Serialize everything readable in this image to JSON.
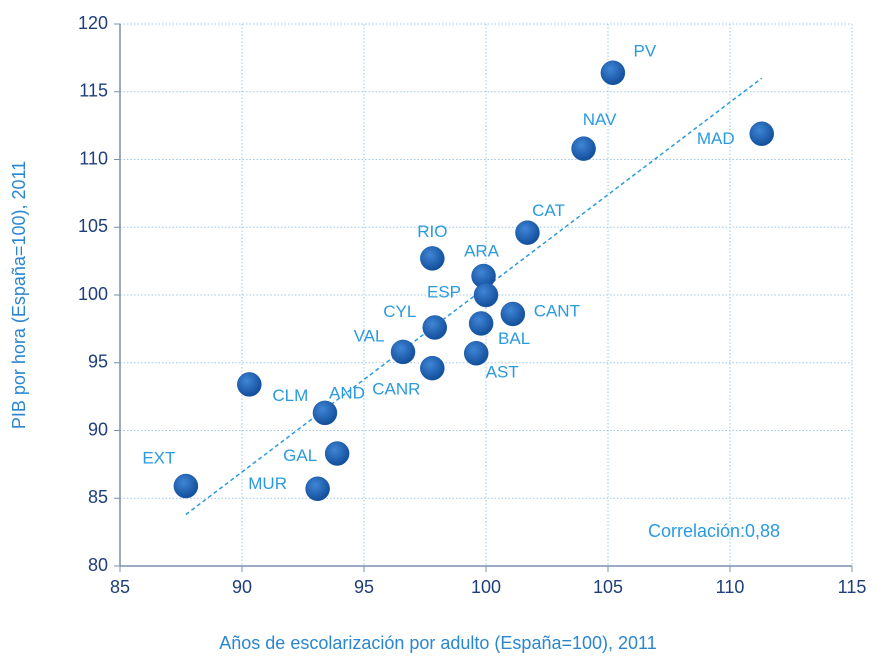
{
  "chart_data": {
    "type": "scatter",
    "x_label": "Años de escolarización por adulto (España=100), 2011",
    "y_label": "PIB por hora (España=100), 2011",
    "annotation": "Correlación:0,88",
    "labels": [
      "PV",
      "NAV",
      "MAD",
      "CAT",
      "RIO",
      "ARA",
      "ESP",
      "CYL",
      "CANT",
      "BAL",
      "VAL",
      "AST",
      "CANR",
      "CLM",
      "AND",
      "GAL",
      "EXT",
      "MUR"
    ],
    "x": [
      105.2,
      104.0,
      111.3,
      101.7,
      97.8,
      99.9,
      100.0,
      97.9,
      101.1,
      99.8,
      96.6,
      99.6,
      97.8,
      90.3,
      93.4,
      93.9,
      87.7,
      93.1
    ],
    "y": [
      116.4,
      110.8,
      111.9,
      104.6,
      102.7,
      101.4,
      100.0,
      97.6,
      98.6,
      97.9,
      95.8,
      95.7,
      94.6,
      93.4,
      91.3,
      88.3,
      85.9,
      85.7
    ],
    "color": "#1658aa",
    "trendline": {
      "x": [
        87.7,
        111.3
      ],
      "y": [
        83.8,
        116.0
      ],
      "color": "#2a9ae0"
    },
    "xlim": [
      85,
      115
    ],
    "xticks": [
      85,
      90,
      95,
      100,
      105,
      110,
      115
    ],
    "ylim": [
      80,
      120
    ],
    "yticks": [
      80,
      85,
      90,
      95,
      100,
      105,
      110,
      115,
      120
    ],
    "grid": true
  }
}
